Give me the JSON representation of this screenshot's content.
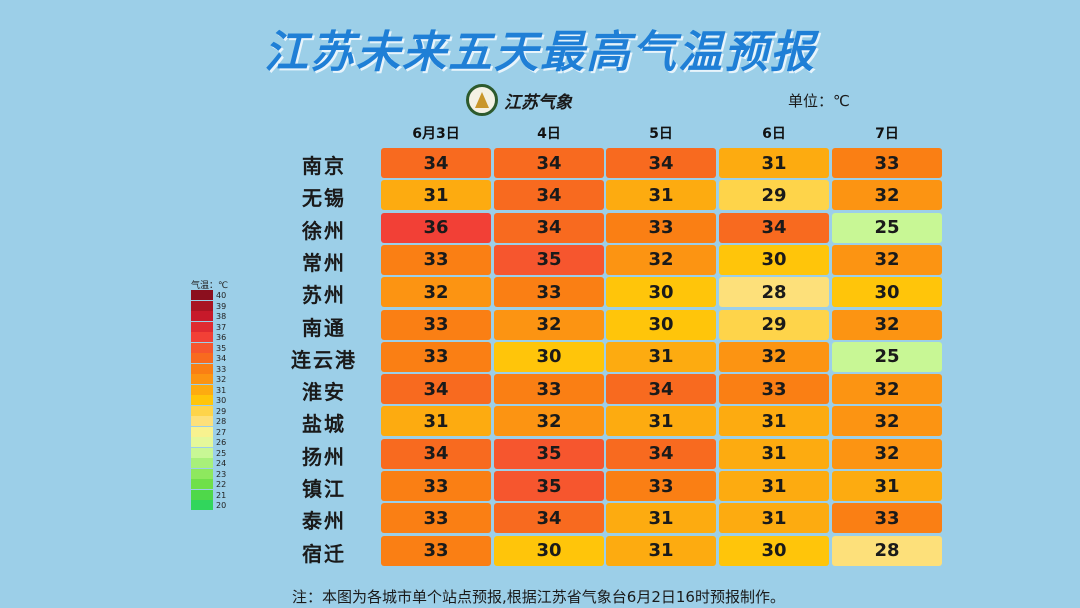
{
  "title": "江苏未来五天最高气温预报",
  "logo_text": "江苏气象",
  "unit": "单位：℃",
  "legend": {
    "title": "气温：℃",
    "levels": [
      {
        "label": "40",
        "color": "#8b0f1e"
      },
      {
        "label": "39",
        "color": "#a91422"
      },
      {
        "label": "38",
        "color": "#c7192a"
      },
      {
        "label": "37",
        "color": "#e02b31"
      },
      {
        "label": "36",
        "color": "#f24036"
      },
      {
        "label": "35",
        "color": "#f6562e"
      },
      {
        "label": "34",
        "color": "#f86a1f"
      },
      {
        "label": "33",
        "color": "#fa7f14"
      },
      {
        "label": "32",
        "color": "#fc9412"
      },
      {
        "label": "31",
        "color": "#fdab10"
      },
      {
        "label": "30",
        "color": "#ffc50a"
      },
      {
        "label": "29",
        "color": "#fed44a"
      },
      {
        "label": "28",
        "color": "#fde07a"
      },
      {
        "label": "27",
        "color": "#f8f28f"
      },
      {
        "label": "26",
        "color": "#e5f89a"
      },
      {
        "label": "25",
        "color": "#c8f795"
      },
      {
        "label": "24",
        "color": "#a8f07a"
      },
      {
        "label": "23",
        "color": "#8ee85e"
      },
      {
        "label": "22",
        "color": "#6fe04a"
      },
      {
        "label": "21",
        "color": "#4fd84a"
      },
      {
        "label": "20",
        "color": "#31d65c"
      }
    ]
  },
  "chart_data": {
    "type": "table",
    "title": "江苏未来五天最高气温预报",
    "columns": [
      "6月3日",
      "4日",
      "5日",
      "6日",
      "7日"
    ],
    "rows": [
      {
        "city": "南京",
        "values": [
          34,
          34,
          34,
          31,
          33
        ]
      },
      {
        "city": "无锡",
        "values": [
          31,
          34,
          31,
          29,
          32
        ]
      },
      {
        "city": "徐州",
        "values": [
          36,
          34,
          33,
          34,
          25
        ]
      },
      {
        "city": "常州",
        "values": [
          33,
          35,
          32,
          30,
          32
        ]
      },
      {
        "city": "苏州",
        "values": [
          32,
          33,
          30,
          28,
          30
        ]
      },
      {
        "city": "南通",
        "values": [
          33,
          32,
          30,
          29,
          32
        ]
      },
      {
        "city": "连云港",
        "values": [
          33,
          30,
          31,
          32,
          25
        ]
      },
      {
        "city": "淮安",
        "values": [
          34,
          33,
          34,
          33,
          32
        ]
      },
      {
        "city": "盐城",
        "values": [
          31,
          32,
          31,
          31,
          32
        ]
      },
      {
        "city": "扬州",
        "values": [
          34,
          35,
          34,
          31,
          32
        ]
      },
      {
        "city": "镇江",
        "values": [
          33,
          35,
          33,
          31,
          31
        ]
      },
      {
        "city": "泰州",
        "values": [
          33,
          34,
          31,
          31,
          33
        ]
      },
      {
        "city": "宿迁",
        "values": [
          33,
          30,
          31,
          30,
          28
        ]
      }
    ]
  },
  "note": "注：本图为各城市单个站点预报,根据江苏省气象台6月2日16时预报制作。"
}
